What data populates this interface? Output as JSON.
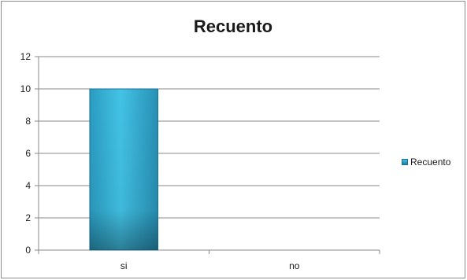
{
  "chart_data": {
    "type": "bar",
    "title": "Recuento",
    "categories": [
      "si",
      "no"
    ],
    "series": [
      {
        "name": "Recuento",
        "values": [
          10,
          0
        ],
        "color": "#2fb0d6"
      }
    ],
    "ylim": [
      0,
      12
    ],
    "yticks": [
      0,
      2,
      4,
      6,
      8,
      10,
      12
    ],
    "grid": true,
    "legend_position": "right"
  }
}
